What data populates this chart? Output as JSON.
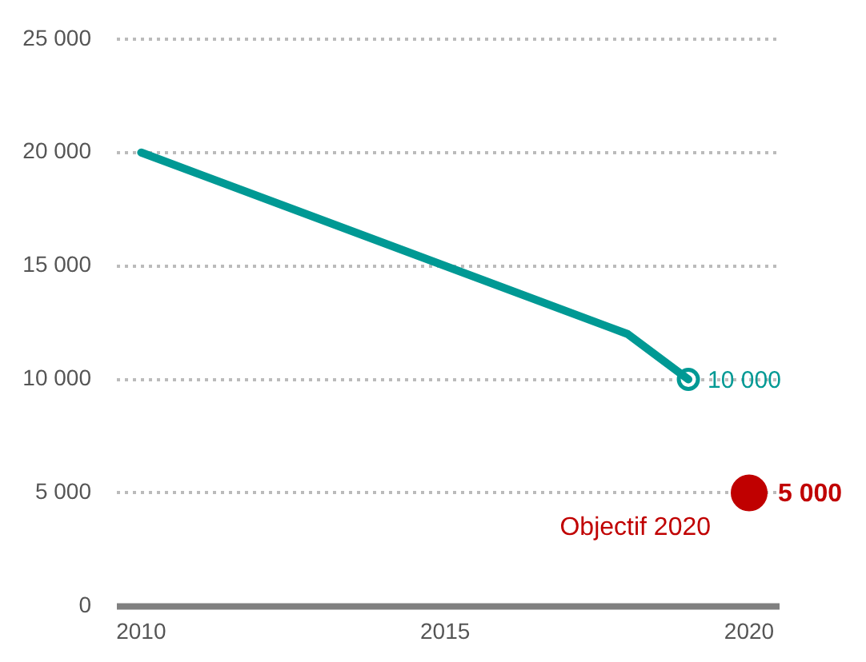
{
  "chart_data": {
    "type": "line",
    "xlim": [
      2009.6,
      2020.5
    ],
    "xticks": [
      2010,
      2015,
      2020
    ],
    "ylim": [
      0,
      25000
    ],
    "yticks": [
      {
        "value": 0,
        "label": "0"
      },
      {
        "value": 5000,
        "label": "5 000"
      },
      {
        "value": 10000,
        "label": "10 000"
      },
      {
        "value": 15000,
        "label": "15 000"
      },
      {
        "value": 20000,
        "label": "20 000"
      },
      {
        "value": 25000,
        "label": "25 000"
      }
    ],
    "grid": "y",
    "legend": false,
    "line_style": "solid",
    "series": [
      {
        "color": "#009994",
        "x": [
          2010,
          2018,
          2019
        ],
        "values": [
          20000,
          12000,
          10000
        ],
        "marker": "none"
      },
      {
        "type": "scatter",
        "color": "#009994",
        "x": [
          2019
        ],
        "values": [
          10000
        ],
        "marker": "circle",
        "value_labels": [
          "10 000"
        ]
      },
      {
        "type": "scatter",
        "color": "#c00000",
        "x": [
          2020
        ],
        "values": [
          5000
        ],
        "marker": "circle",
        "value_labels": [
          "5 000"
        ]
      }
    ],
    "annotations": [
      {
        "text": "Objectif 2020",
        "x": 2020,
        "y": 5000
      }
    ]
  }
}
